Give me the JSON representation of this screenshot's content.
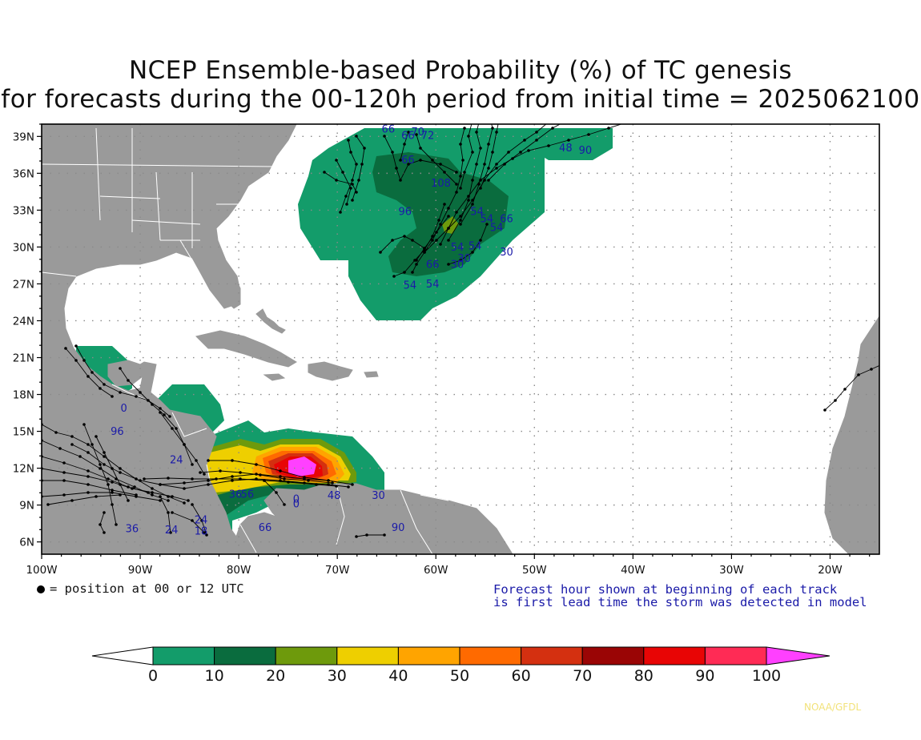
{
  "title": {
    "line1": "NCEP Ensemble-based Probability (%) of TC genesis",
    "line2": "for forecasts during the 00-120h period from initial time = 2025062100"
  },
  "map": {
    "lat_labels": [
      "39N",
      "36N",
      "33N",
      "30N",
      "27N",
      "24N",
      "21N",
      "18N",
      "15N",
      "12N",
      "9N",
      "6N"
    ],
    "lon_labels": [
      "100W",
      "90W",
      "80W",
      "70W",
      "60W",
      "50W",
      "40W",
      "30W",
      "20W"
    ],
    "colors": {
      "ocean": "#ffffff",
      "land": "#9a9a9a",
      "border": "#ffffff",
      "grid": "#8a8a8a",
      "track_label": "#1a1aa8"
    },
    "track_labels": [
      {
        "text": "66",
        "lon": -65.5,
        "lat": 39.3
      },
      {
        "text": "66",
        "lon": -63.5,
        "lat": 38.8
      },
      {
        "text": "70",
        "lon": -62.5,
        "lat": 39.1
      },
      {
        "text": "72",
        "lon": -61.5,
        "lat": 38.8
      },
      {
        "text": "66",
        "lon": -63.5,
        "lat": 36.8
      },
      {
        "text": "108",
        "lon": -60.5,
        "lat": 34.9
      },
      {
        "text": "96",
        "lon": -63.8,
        "lat": 32.6
      },
      {
        "text": "48",
        "lon": -47.5,
        "lat": 37.8
      },
      {
        "text": "90",
        "lon": -45.5,
        "lat": 37.6
      },
      {
        "text": "54",
        "lon": -56.5,
        "lat": 32.6
      },
      {
        "text": "54",
        "lon": -55.5,
        "lat": 32.0
      },
      {
        "text": "66",
        "lon": -53.5,
        "lat": 32.0
      },
      {
        "text": "54",
        "lon": -54.5,
        "lat": 31.3
      },
      {
        "text": "54",
        "lon": -58.5,
        "lat": 29.7
      },
      {
        "text": "54",
        "lon": -56.7,
        "lat": 29.8
      },
      {
        "text": "30",
        "lon": -57.8,
        "lat": 28.8
      },
      {
        "text": "66",
        "lon": -61.0,
        "lat": 28.3
      },
      {
        "text": "30",
        "lon": -58.5,
        "lat": 28.3
      },
      {
        "text": "30",
        "lon": -53.5,
        "lat": 29.3
      },
      {
        "text": "54",
        "lon": -63.3,
        "lat": 26.6
      },
      {
        "text": "54",
        "lon": -61.0,
        "lat": 26.7
      },
      {
        "text": "0",
        "lon": -92.0,
        "lat": 16.6
      },
      {
        "text": "96",
        "lon": -93.0,
        "lat": 14.7
      },
      {
        "text": "24",
        "lon": -87.0,
        "lat": 12.4
      },
      {
        "text": "56",
        "lon": -79.8,
        "lat": 9.6
      },
      {
        "text": "36",
        "lon": -81.0,
        "lat": 9.6
      },
      {
        "text": "48",
        "lon": -71.0,
        "lat": 9.5
      },
      {
        "text": "30",
        "lon": -66.5,
        "lat": 9.5
      },
      {
        "text": "24",
        "lon": -84.5,
        "lat": 7.5
      },
      {
        "text": "36",
        "lon": -91.5,
        "lat": 6.8
      },
      {
        "text": "24",
        "lon": -87.5,
        "lat": 6.7
      },
      {
        "text": "18",
        "lon": -84.5,
        "lat": 6.6
      },
      {
        "text": "66",
        "lon": -78.0,
        "lat": 6.9
      },
      {
        "text": "90",
        "lon": -64.5,
        "lat": 6.9
      },
      {
        "text": "0",
        "lon": -74.5,
        "lat": 9.2
      },
      {
        "text": "0",
        "lon": -74.5,
        "lat": 8.8
      }
    ],
    "legend_text": "= position at 00 or 12 UTC",
    "note_line1": "Forecast hour shown at beginning of each track",
    "note_line2": "is first lead time the storm was detected in model"
  },
  "colorbar": {
    "labels": [
      "0",
      "10",
      "20",
      "30",
      "40",
      "50",
      "60",
      "70",
      "80",
      "90",
      "100"
    ],
    "colors": [
      "#ffffff",
      "#139c6a",
      "#0a6c3e",
      "#6e9a0c",
      "#eecf00",
      "#ffa400",
      "#ff6a00",
      "#d43010",
      "#9a0505",
      "#e80505",
      "#ff2b55",
      "#ff40ff"
    ]
  },
  "credit": "NOAA/GFDL"
}
